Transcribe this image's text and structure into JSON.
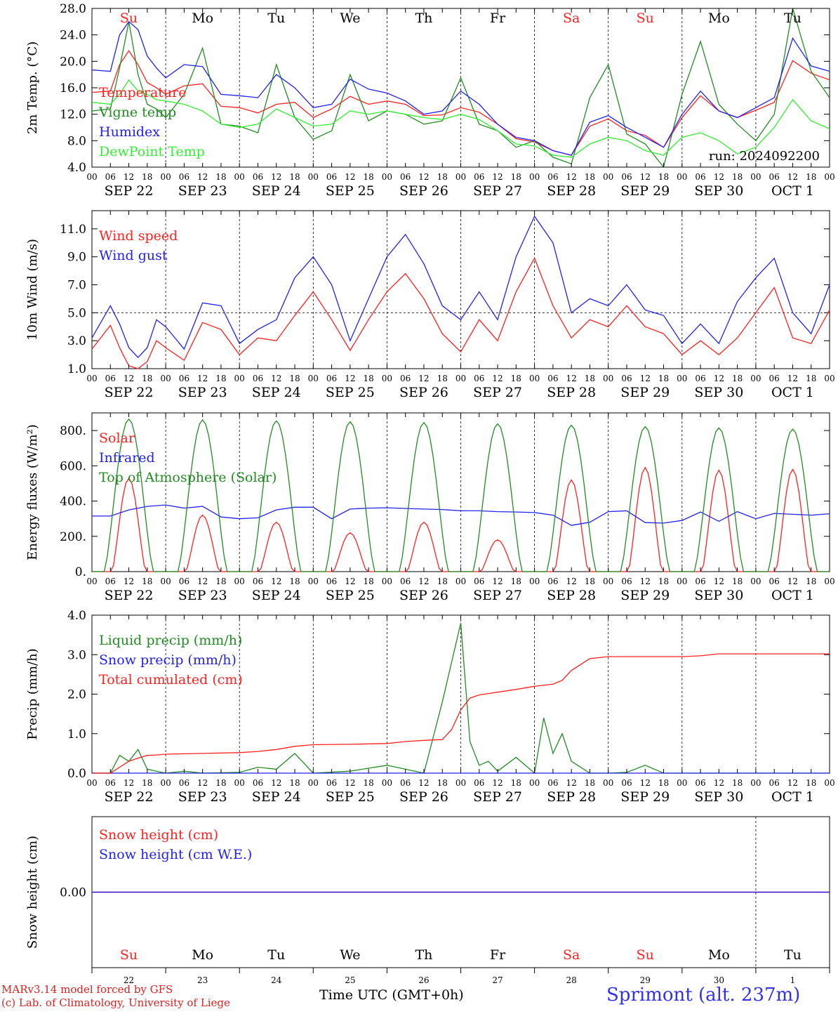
{
  "location_label": "Sprimont (alt. 237m)",
  "credit_lines": [
    "MARv3.14 model forced by GFS",
    "(c) Lab. of Climatology, University of Liege"
  ],
  "time_axis_label": "Time UTC (GMT+0h)",
  "run_label": "run: 2024092200",
  "colors": {
    "red": "#ff2020",
    "green": "#228b22",
    "blue": "#2222ee",
    "lightgreen": "#33ee33",
    "purple": "#8844aa",
    "weekend": "#ff2020",
    "weekday": "#000000"
  },
  "days": [
    {
      "dow": "Su",
      "date": "SEP 22",
      "day_num": "22",
      "weekend": true
    },
    {
      "dow": "Mo",
      "date": "SEP 23",
      "day_num": "23",
      "weekend": false
    },
    {
      "dow": "Tu",
      "date": "SEP 24",
      "day_num": "24",
      "weekend": false
    },
    {
      "dow": "We",
      "date": "SEP 25",
      "day_num": "25",
      "weekend": false
    },
    {
      "dow": "Th",
      "date": "SEP 26",
      "day_num": "26",
      "weekend": false
    },
    {
      "dow": "Fr",
      "date": "SEP 27",
      "day_num": "27",
      "weekend": false
    },
    {
      "dow": "Sa",
      "date": "SEP 28",
      "day_num": "28",
      "weekend": true
    },
    {
      "dow": "Su",
      "date": "SEP 29",
      "day_num": "29",
      "weekend": true
    },
    {
      "dow": "Mo",
      "date": "SEP 30",
      "day_num": "30",
      "weekend": false
    },
    {
      "dow": "Tu",
      "date": "OCT  1",
      "day_num": "1",
      "weekend": false
    }
  ],
  "hour_ticks": [
    "00",
    "06",
    "12",
    "18"
  ],
  "chart_data": [
    {
      "id": "temp",
      "type": "line",
      "ylabel": "2m Temp. (°C)",
      "ylim": [
        4,
        28
      ],
      "yticks": [
        "4.0",
        "8.0",
        "12.0",
        "16.0",
        "20.0",
        "24.0",
        "28.0"
      ],
      "show_dow": true,
      "show_run": true,
      "series": [
        {
          "name": "Temperature",
          "color": "red",
          "x": [
            0,
            6,
            9,
            12,
            15,
            18,
            21,
            24,
            30,
            36,
            42,
            48,
            54,
            60,
            66,
            72,
            78,
            84,
            90,
            96,
            102,
            108,
            114,
            120,
            126,
            132,
            138,
            144,
            150,
            156,
            162,
            168,
            174,
            180,
            186,
            192,
            198,
            204,
            210,
            216,
            222,
            228,
            234,
            240
          ],
          "y": [
            15.3,
            15.5,
            19.5,
            21.6,
            19.5,
            16.8,
            16.0,
            15.0,
            16.3,
            16.6,
            13.2,
            13.0,
            12.2,
            13.5,
            13.8,
            11.5,
            12.8,
            14.7,
            13.5,
            14.0,
            13.5,
            11.8,
            11.9,
            13.0,
            12.3,
            10.5,
            8.3,
            7.8,
            6.5,
            5.8,
            10.2,
            11.3,
            9.5,
            8.8,
            7.0,
            11.5,
            14.8,
            12.5,
            11.5,
            12.6,
            13.8,
            20.1,
            18.2,
            17.2
          ]
        },
        {
          "name": "Vigne temp",
          "color": "green",
          "x": [
            0,
            6,
            9,
            12,
            15,
            18,
            21,
            24,
            30,
            36,
            42,
            48,
            54,
            60,
            66,
            72,
            78,
            84,
            90,
            96,
            102,
            108,
            114,
            120,
            126,
            132,
            138,
            144,
            150,
            156,
            162,
            168,
            174,
            180,
            186,
            192,
            198,
            204,
            210,
            216,
            222,
            228,
            234,
            240
          ],
          "y": [
            12.5,
            12.8,
            19.0,
            26.0,
            18.0,
            13.5,
            12.8,
            11.5,
            15.0,
            22.0,
            10.5,
            10.2,
            9.2,
            19.5,
            11.5,
            8.2,
            9.5,
            18.0,
            11.0,
            12.5,
            12.0,
            10.5,
            11.0,
            17.5,
            10.5,
            9.5,
            7.0,
            8.0,
            5.5,
            4.5,
            14.5,
            19.5,
            9.0,
            7.5,
            3.5,
            15.0,
            23.0,
            13.5,
            10.5,
            8.0,
            12.0,
            28.0,
            18.5,
            14.5
          ]
        },
        {
          "name": "Humidex",
          "color": "blue",
          "x": [
            0,
            6,
            9,
            12,
            15,
            18,
            21,
            24,
            30,
            36,
            42,
            48,
            54,
            60,
            66,
            72,
            78,
            84,
            90,
            96,
            102,
            108,
            114,
            120,
            126,
            132,
            138,
            144,
            150,
            156,
            162,
            168,
            174,
            180,
            186,
            192,
            198,
            204,
            210,
            216,
            222,
            228,
            234,
            240
          ],
          "y": [
            18.7,
            18.5,
            24.0,
            26.0,
            24.8,
            20.8,
            19.0,
            17.5,
            19.5,
            19.2,
            15.0,
            14.8,
            14.5,
            18.0,
            16.0,
            13.0,
            13.5,
            17.3,
            15.8,
            15.2,
            14.0,
            12.0,
            12.5,
            15.5,
            13.5,
            10.5,
            8.5,
            8.0,
            6.5,
            5.8,
            10.8,
            11.8,
            10.0,
            8.5,
            7.0,
            12.0,
            15.5,
            12.5,
            11.5,
            13.0,
            14.5,
            23.5,
            19.3,
            18.5
          ]
        },
        {
          "name": "DewPoint Temp",
          "color": "lightgreen",
          "x": [
            0,
            6,
            9,
            12,
            15,
            18,
            21,
            24,
            30,
            36,
            42,
            48,
            54,
            60,
            66,
            72,
            78,
            84,
            90,
            96,
            102,
            108,
            114,
            120,
            126,
            132,
            138,
            144,
            150,
            156,
            162,
            168,
            174,
            180,
            186,
            192,
            198,
            204,
            210,
            216,
            222,
            228,
            234,
            240
          ],
          "y": [
            13.8,
            13.5,
            15.0,
            17.2,
            15.5,
            15.0,
            14.2,
            14.0,
            13.5,
            12.5,
            10.5,
            10.0,
            10.5,
            12.8,
            11.5,
            10.2,
            10.5,
            12.5,
            12.0,
            12.5,
            12.0,
            11.5,
            11.2,
            12.0,
            11.2,
            9.5,
            7.5,
            7.2,
            5.8,
            5.5,
            7.5,
            8.5,
            8.0,
            6.5,
            5.8,
            8.5,
            9.2,
            8.0,
            6.0,
            7.0,
            10.0,
            14.2,
            11.0,
            9.8
          ]
        }
      ]
    },
    {
      "id": "wind",
      "type": "line",
      "ylabel": "10m Wind (m/s)",
      "ylim": [
        1,
        12.3
      ],
      "yticks": [
        "1.0",
        "3.0",
        "5.0",
        "7.0",
        "9.0",
        "11.0"
      ],
      "ref_line": 5,
      "series": [
        {
          "name": "Wind speed",
          "color": "red",
          "x": [
            0,
            6,
            9,
            12,
            15,
            18,
            21,
            24,
            30,
            36,
            42,
            48,
            54,
            60,
            66,
            72,
            78,
            84,
            90,
            96,
            102,
            108,
            114,
            120,
            126,
            132,
            138,
            144,
            150,
            156,
            162,
            168,
            174,
            180,
            186,
            192,
            198,
            204,
            210,
            216,
            222,
            228,
            234,
            240
          ],
          "y": [
            2.4,
            4.1,
            2.5,
            1.2,
            1.0,
            1.5,
            3.0,
            2.5,
            1.6,
            4.3,
            3.8,
            2.0,
            3.2,
            3.0,
            4.8,
            6.5,
            4.5,
            2.3,
            4.5,
            6.5,
            7.8,
            6.0,
            3.5,
            2.2,
            4.5,
            3.0,
            6.5,
            8.9,
            5.5,
            3.2,
            4.5,
            4.0,
            5.5,
            4.0,
            3.5,
            2.0,
            3.0,
            2.0,
            3.2,
            5.0,
            6.8,
            3.2,
            2.8,
            5.2
          ]
        },
        {
          "name": "Wind gust",
          "color": "blue",
          "x": [
            0,
            6,
            9,
            12,
            15,
            18,
            21,
            24,
            30,
            36,
            42,
            48,
            54,
            60,
            66,
            72,
            78,
            84,
            90,
            96,
            102,
            108,
            114,
            120,
            126,
            132,
            138,
            144,
            150,
            156,
            162,
            168,
            174,
            180,
            186,
            192,
            198,
            204,
            210,
            216,
            222,
            228,
            234,
            240
          ],
          "y": [
            3.2,
            5.5,
            4.2,
            2.5,
            1.8,
            2.5,
            4.5,
            4.0,
            2.4,
            5.7,
            5.5,
            2.8,
            3.8,
            4.5,
            7.5,
            9.0,
            7.0,
            3.0,
            6.0,
            9.0,
            10.6,
            8.5,
            5.5,
            4.5,
            6.5,
            4.5,
            9.0,
            11.9,
            10.0,
            5.0,
            6.0,
            5.5,
            7.0,
            5.2,
            4.8,
            2.8,
            4.2,
            2.8,
            5.8,
            7.5,
            8.9,
            5.0,
            3.5,
            7.0
          ]
        }
      ]
    },
    {
      "id": "flux",
      "type": "line",
      "ylabel": "Energy fluxes (W/m²)",
      "ylim": [
        0,
        900
      ],
      "yticks": [
        "0.",
        "200.",
        "400.",
        "600.",
        "800."
      ],
      "series": [
        {
          "name": "Solar",
          "color": "red",
          "daily_peaks": [
            530,
            320,
            280,
            220,
            280,
            180,
            520,
            590,
            575,
            580
          ]
        },
        {
          "name": "Infrared",
          "color": "blue",
          "x": [
            0,
            6,
            12,
            18,
            24,
            30,
            36,
            42,
            48,
            54,
            60,
            66,
            72,
            78,
            84,
            90,
            96,
            102,
            108,
            114,
            120,
            126,
            132,
            138,
            144,
            150,
            156,
            162,
            168,
            174,
            180,
            186,
            192,
            198,
            204,
            210,
            216,
            222,
            228,
            234,
            240
          ],
          "y": [
            315,
            315,
            350,
            370,
            378,
            360,
            370,
            310,
            300,
            305,
            350,
            365,
            365,
            300,
            355,
            360,
            362,
            358,
            355,
            352,
            345,
            345,
            340,
            338,
            335,
            320,
            262,
            280,
            340,
            345,
            278,
            275,
            290,
            338,
            285,
            340,
            300,
            330,
            325,
            320,
            328
          ]
        },
        {
          "name": "Top of Atmosphere (Solar)",
          "color": "green",
          "daily_peaks": [
            865,
            860,
            855,
            850,
            845,
            838,
            830,
            822,
            815,
            808
          ]
        }
      ]
    },
    {
      "id": "precip",
      "type": "line",
      "ylabel": "Precip (mm/h)",
      "ylim": [
        0,
        4.0
      ],
      "yticks": [
        "0.0",
        "1.0",
        "2.0",
        "3.0",
        "4.0"
      ],
      "series": [
        {
          "name": "Liquid precip (mm/h)",
          "color": "green",
          "x": [
            0,
            6,
            9,
            12,
            15,
            18,
            21,
            24,
            30,
            36,
            48,
            54,
            60,
            66,
            72,
            84,
            96,
            108,
            114,
            120,
            123,
            126,
            129,
            132,
            138,
            144,
            147,
            150,
            153,
            156,
            162,
            168,
            174,
            180,
            186,
            192,
            198,
            204,
            216,
            228,
            240
          ],
          "y": [
            0,
            0,
            0.45,
            0.3,
            0.6,
            0.1,
            0.05,
            0,
            0.05,
            0,
            0.02,
            0.15,
            0.1,
            0.5,
            0,
            0.05,
            0.2,
            0,
            1.8,
            3.8,
            0.8,
            0.2,
            0.3,
            0.05,
            0.4,
            0,
            1.4,
            0.5,
            1.0,
            0.3,
            0,
            0,
            0.02,
            0.2,
            0,
            0,
            0,
            0,
            0,
            0,
            0
          ]
        },
        {
          "name": "Snow precip (mm/h)",
          "color": "blue",
          "x": [
            0,
            240
          ],
          "y": [
            0,
            0
          ]
        },
        {
          "name": "Total cumulated (cm)",
          "color": "red",
          "x": [
            0,
            6,
            9,
            12,
            15,
            18,
            21,
            24,
            30,
            36,
            48,
            54,
            60,
            66,
            72,
            84,
            96,
            102,
            108,
            114,
            117,
            120,
            123,
            126,
            132,
            138,
            144,
            150,
            153,
            156,
            162,
            168,
            174,
            180,
            186,
            192,
            198,
            204,
            216,
            228,
            240
          ],
          "y": [
            0,
            0,
            0.15,
            0.3,
            0.38,
            0.45,
            0.46,
            0.48,
            0.49,
            0.5,
            0.52,
            0.55,
            0.6,
            0.68,
            0.72,
            0.73,
            0.75,
            0.8,
            0.83,
            0.85,
            1.1,
            1.6,
            1.9,
            1.98,
            2.05,
            2.12,
            2.2,
            2.25,
            2.35,
            2.6,
            2.9,
            2.95,
            2.95,
            2.95,
            2.95,
            2.95,
            2.97,
            3.02,
            3.02,
            3.02,
            3.02
          ]
        }
      ]
    },
    {
      "id": "snow",
      "type": "line",
      "ylabel": "Snow height (cm)",
      "ylim": [
        -1,
        1
      ],
      "yticks": [
        "0.00"
      ],
      "series": [
        {
          "name": "Snow height (cm)",
          "color": "red",
          "x": [
            0,
            240
          ],
          "y": [
            0,
            0
          ]
        },
        {
          "name": "Snow height (cm W.E.)",
          "color": "blue",
          "x": [
            0,
            240
          ],
          "y": [
            0,
            0
          ]
        }
      ]
    }
  ]
}
